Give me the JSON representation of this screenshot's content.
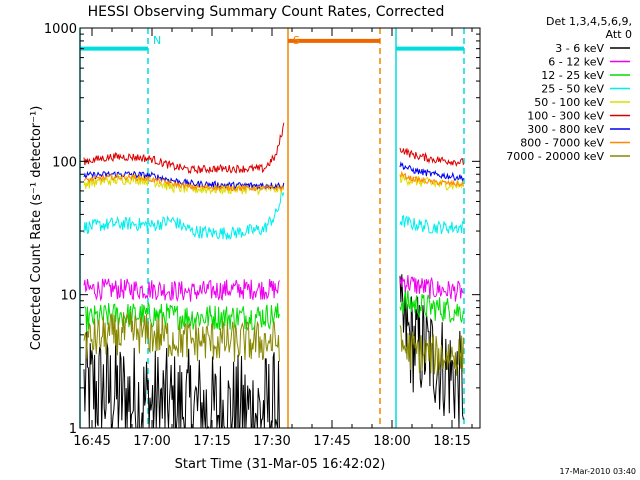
{
  "chart_data": {
    "type": "line",
    "title": "HESSI Observing Summary Count Rates, Corrected",
    "xlabel": "Start Time (31-Mar-05 16:42:02)",
    "ylabel": "Corrected Count Rate (s⁻¹ detector⁻¹)",
    "yscale": "log",
    "ylim": [
      1,
      1000
    ],
    "xlim": [
      "16:42",
      "18:22"
    ],
    "x_ticks": [
      "16:45",
      "17:00",
      "17:15",
      "17:30",
      "17:45",
      "18:00",
      "18:15"
    ],
    "y_ticks": [
      "1",
      "10",
      "100",
      "1000"
    ],
    "legend_header": [
      "Det 1,3,4,5,6,9,",
      "Att 0"
    ],
    "legend_position": "right",
    "footer": "17-Mar-2010 03:40",
    "markers": [
      {
        "label": "N",
        "time": "16:59",
        "color": "#00dddd"
      },
      {
        "label": "S",
        "time": "17:34",
        "color": "#ee8800"
      }
    ],
    "vertical_lines": [
      {
        "time": "16:42",
        "color": "#00dddd",
        "style": "solid"
      },
      {
        "time": "16:59",
        "color": "#00dddd",
        "style": "dashed"
      },
      {
        "time": "17:34",
        "color": "#ee8800",
        "style": "solid"
      },
      {
        "time": "17:57",
        "color": "#ee8800",
        "style": "dashed"
      },
      {
        "time": "18:01",
        "color": "#00dddd",
        "style": "solid"
      },
      {
        "time": "18:18",
        "color": "#00dddd",
        "style": "dashed"
      }
    ],
    "flag_bars": [
      {
        "start": "16:42",
        "end": "16:59",
        "value": 700,
        "color": "#00dddd"
      },
      {
        "start": "17:34",
        "end": "17:57",
        "value": 800,
        "color": "#ee6600"
      },
      {
        "start": "18:01",
        "end": "18:18",
        "value": 700,
        "color": "#00dddd"
      }
    ],
    "series": [
      {
        "name": "3 - 6 keV",
        "color": "#000000",
        "segments": [
          {
            "x": [
              "16:43",
              "16:50",
              "16:55",
              "17:00",
              "17:05",
              "17:10",
              "17:15",
              "17:20",
              "17:25",
              "17:32"
            ],
            "y": [
              2.0,
              1.8,
              1.6,
              1.5,
              1.4,
              1.4,
              1.3,
              1.3,
              1.3,
              1.4
            ],
            "noise": 0.45
          },
          {
            "x": [
              "18:02",
              "18:05",
              "18:10",
              "18:15",
              "18:18"
            ],
            "y": [
              6.0,
              4.5,
              3.5,
              2.5,
              2.0
            ],
            "noise": 0.4
          }
        ]
      },
      {
        "name": "6 - 12 keV",
        "color": "#ee00ee",
        "segments": [
          {
            "x": [
              "16:43",
              "16:50",
              "16:55",
              "17:00",
              "17:10",
              "17:20",
              "17:32"
            ],
            "y": [
              11,
              11,
              11,
              11,
              10.5,
              11,
              11
            ],
            "noise": 0.08
          },
          {
            "x": [
              "18:02",
              "18:05",
              "18:10",
              "18:18"
            ],
            "y": [
              13,
              12,
              11,
              10.5
            ],
            "noise": 0.08
          }
        ]
      },
      {
        "name": "12 - 25 keV",
        "color": "#00dd00",
        "segments": [
          {
            "x": [
              "16:43",
              "16:50",
              "16:55",
              "17:00",
              "17:10",
              "17:20",
              "17:32"
            ],
            "y": [
              6.5,
              7,
              7,
              7,
              6.8,
              6.8,
              7
            ],
            "noise": 0.1
          },
          {
            "x": [
              "18:02",
              "18:05",
              "18:10",
              "18:18"
            ],
            "y": [
              9,
              8.5,
              8,
              7.5
            ],
            "noise": 0.1
          }
        ]
      },
      {
        "name": "25 - 50 keV",
        "color": "#00eeee",
        "segments": [
          {
            "x": [
              "16:43",
              "16:50",
              "16:55",
              "17:00",
              "17:05",
              "17:10",
              "17:15",
              "17:20",
              "17:28",
              "17:31",
              "17:33"
            ],
            "y": [
              32,
              34,
              34,
              33,
              36,
              30,
              29,
              29,
              31,
              40,
              60
            ],
            "noise": 0.05
          },
          {
            "x": [
              "18:02",
              "18:05",
              "18:10",
              "18:18"
            ],
            "y": [
              36,
              34,
              32,
              32
            ],
            "noise": 0.05
          }
        ]
      },
      {
        "name": "50 - 100 keV",
        "color": "#dddd00",
        "segments": [
          {
            "x": [
              "16:43",
              "16:50",
              "16:55",
              "17:00",
              "17:05",
              "17:10",
              "17:15",
              "17:20",
              "17:28",
              "17:33"
            ],
            "y": [
              68,
              72,
              74,
              72,
              64,
              62,
              62,
              62,
              62,
              62
            ],
            "noise": 0.04
          },
          {
            "x": [
              "18:02",
              "18:05",
              "18:10",
              "18:18"
            ],
            "y": [
              75,
              72,
              68,
              66
            ],
            "noise": 0.04
          }
        ]
      },
      {
        "name": "100 - 300 keV",
        "color": "#dd0000",
        "segments": [
          {
            "x": [
              "16:43",
              "16:50",
              "16:55",
              "17:00",
              "17:05",
              "17:10",
              "17:15",
              "17:20",
              "17:28",
              "17:31",
              "17:33"
            ],
            "y": [
              100,
              108,
              108,
              104,
              92,
              86,
              88,
              88,
              88,
              110,
              190
            ],
            "noise": 0.03
          },
          {
            "x": [
              "18:02",
              "18:05",
              "18:10",
              "18:18"
            ],
            "y": [
              125,
              112,
              104,
              98
            ],
            "noise": 0.03
          }
        ]
      },
      {
        "name": "300 - 800 keV",
        "color": "#0000ee",
        "segments": [
          {
            "x": [
              "16:43",
              "16:50",
              "16:55",
              "17:00",
              "17:05",
              "17:10",
              "17:15",
              "17:20",
              "17:28",
              "17:33"
            ],
            "y": [
              78,
              80,
              80,
              78,
              72,
              68,
              67,
              66,
              66,
              66
            ],
            "noise": 0.025
          },
          {
            "x": [
              "18:02",
              "18:05",
              "18:10",
              "18:18"
            ],
            "y": [
              95,
              86,
              80,
              75
            ],
            "noise": 0.025
          }
        ]
      },
      {
        "name": "800 - 7000 keV",
        "color": "#ff8800",
        "segments": [
          {
            "x": [
              "16:43",
              "16:50",
              "16:55",
              "17:00",
              "17:05",
              "17:10",
              "17:15",
              "17:20",
              "17:28",
              "17:33"
            ],
            "y": [
              72,
              76,
              76,
              73,
              68,
              64,
              64,
              63,
              63,
              63
            ],
            "noise": 0.02
          },
          {
            "x": [
              "18:02",
              "18:05",
              "18:10",
              "18:18"
            ],
            "y": [
              80,
              74,
              70,
              67
            ],
            "noise": 0.02
          }
        ]
      },
      {
        "name": "7000 - 20000 keV",
        "color": "#888800",
        "segments": [
          {
            "x": [
              "16:43",
              "16:50",
              "16:55",
              "17:00",
              "17:05",
              "17:10",
              "17:15",
              "17:20",
              "17:25",
              "17:32"
            ],
            "y": [
              4.5,
              5.0,
              5.2,
              5.0,
              4.7,
              4.5,
              4.5,
              4.4,
              4.4,
              4.5
            ],
            "noise": 0.16
          },
          {
            "x": [
              "18:02",
              "18:05",
              "18:10",
              "18:18"
            ],
            "y": [
              4.2,
              3.8,
              3.5,
              3.5
            ],
            "noise": 0.16
          }
        ]
      }
    ]
  }
}
